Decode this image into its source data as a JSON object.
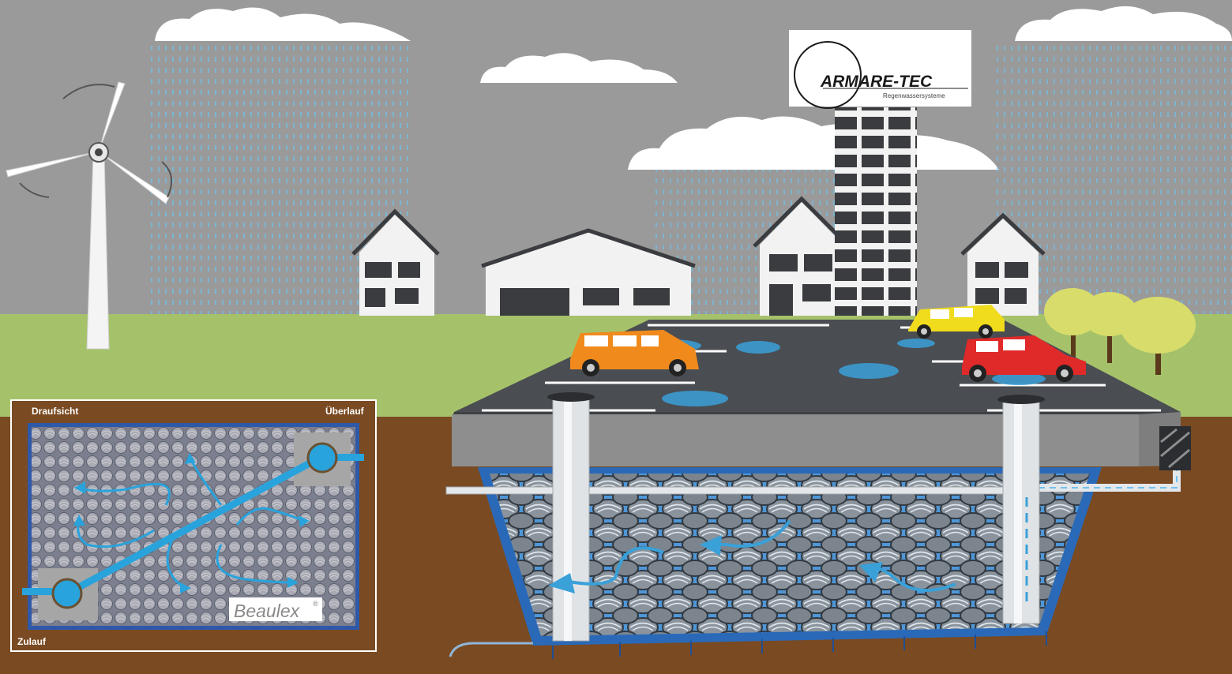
{
  "logo": {
    "title": "ARMARE-TEC",
    "subtitle": "Regenwassersysteme"
  },
  "inset": {
    "top_left_label": "Draufsicht",
    "top_right_label": "Überlauf",
    "bottom_left_label": "Zulauf",
    "brand": "Beaulex",
    "brand_mark": "®"
  },
  "colors": {
    "sky": "#9a9a9a",
    "grass": "#a5c26a",
    "soil": "#7a4a22",
    "water": "#3aa0d8",
    "pipe": "#29a3dc",
    "asphalt": "#4a4d52",
    "car_orange": "#f08a1c",
    "car_yellow": "#f0dc1c",
    "car_red": "#e02a2a"
  }
}
